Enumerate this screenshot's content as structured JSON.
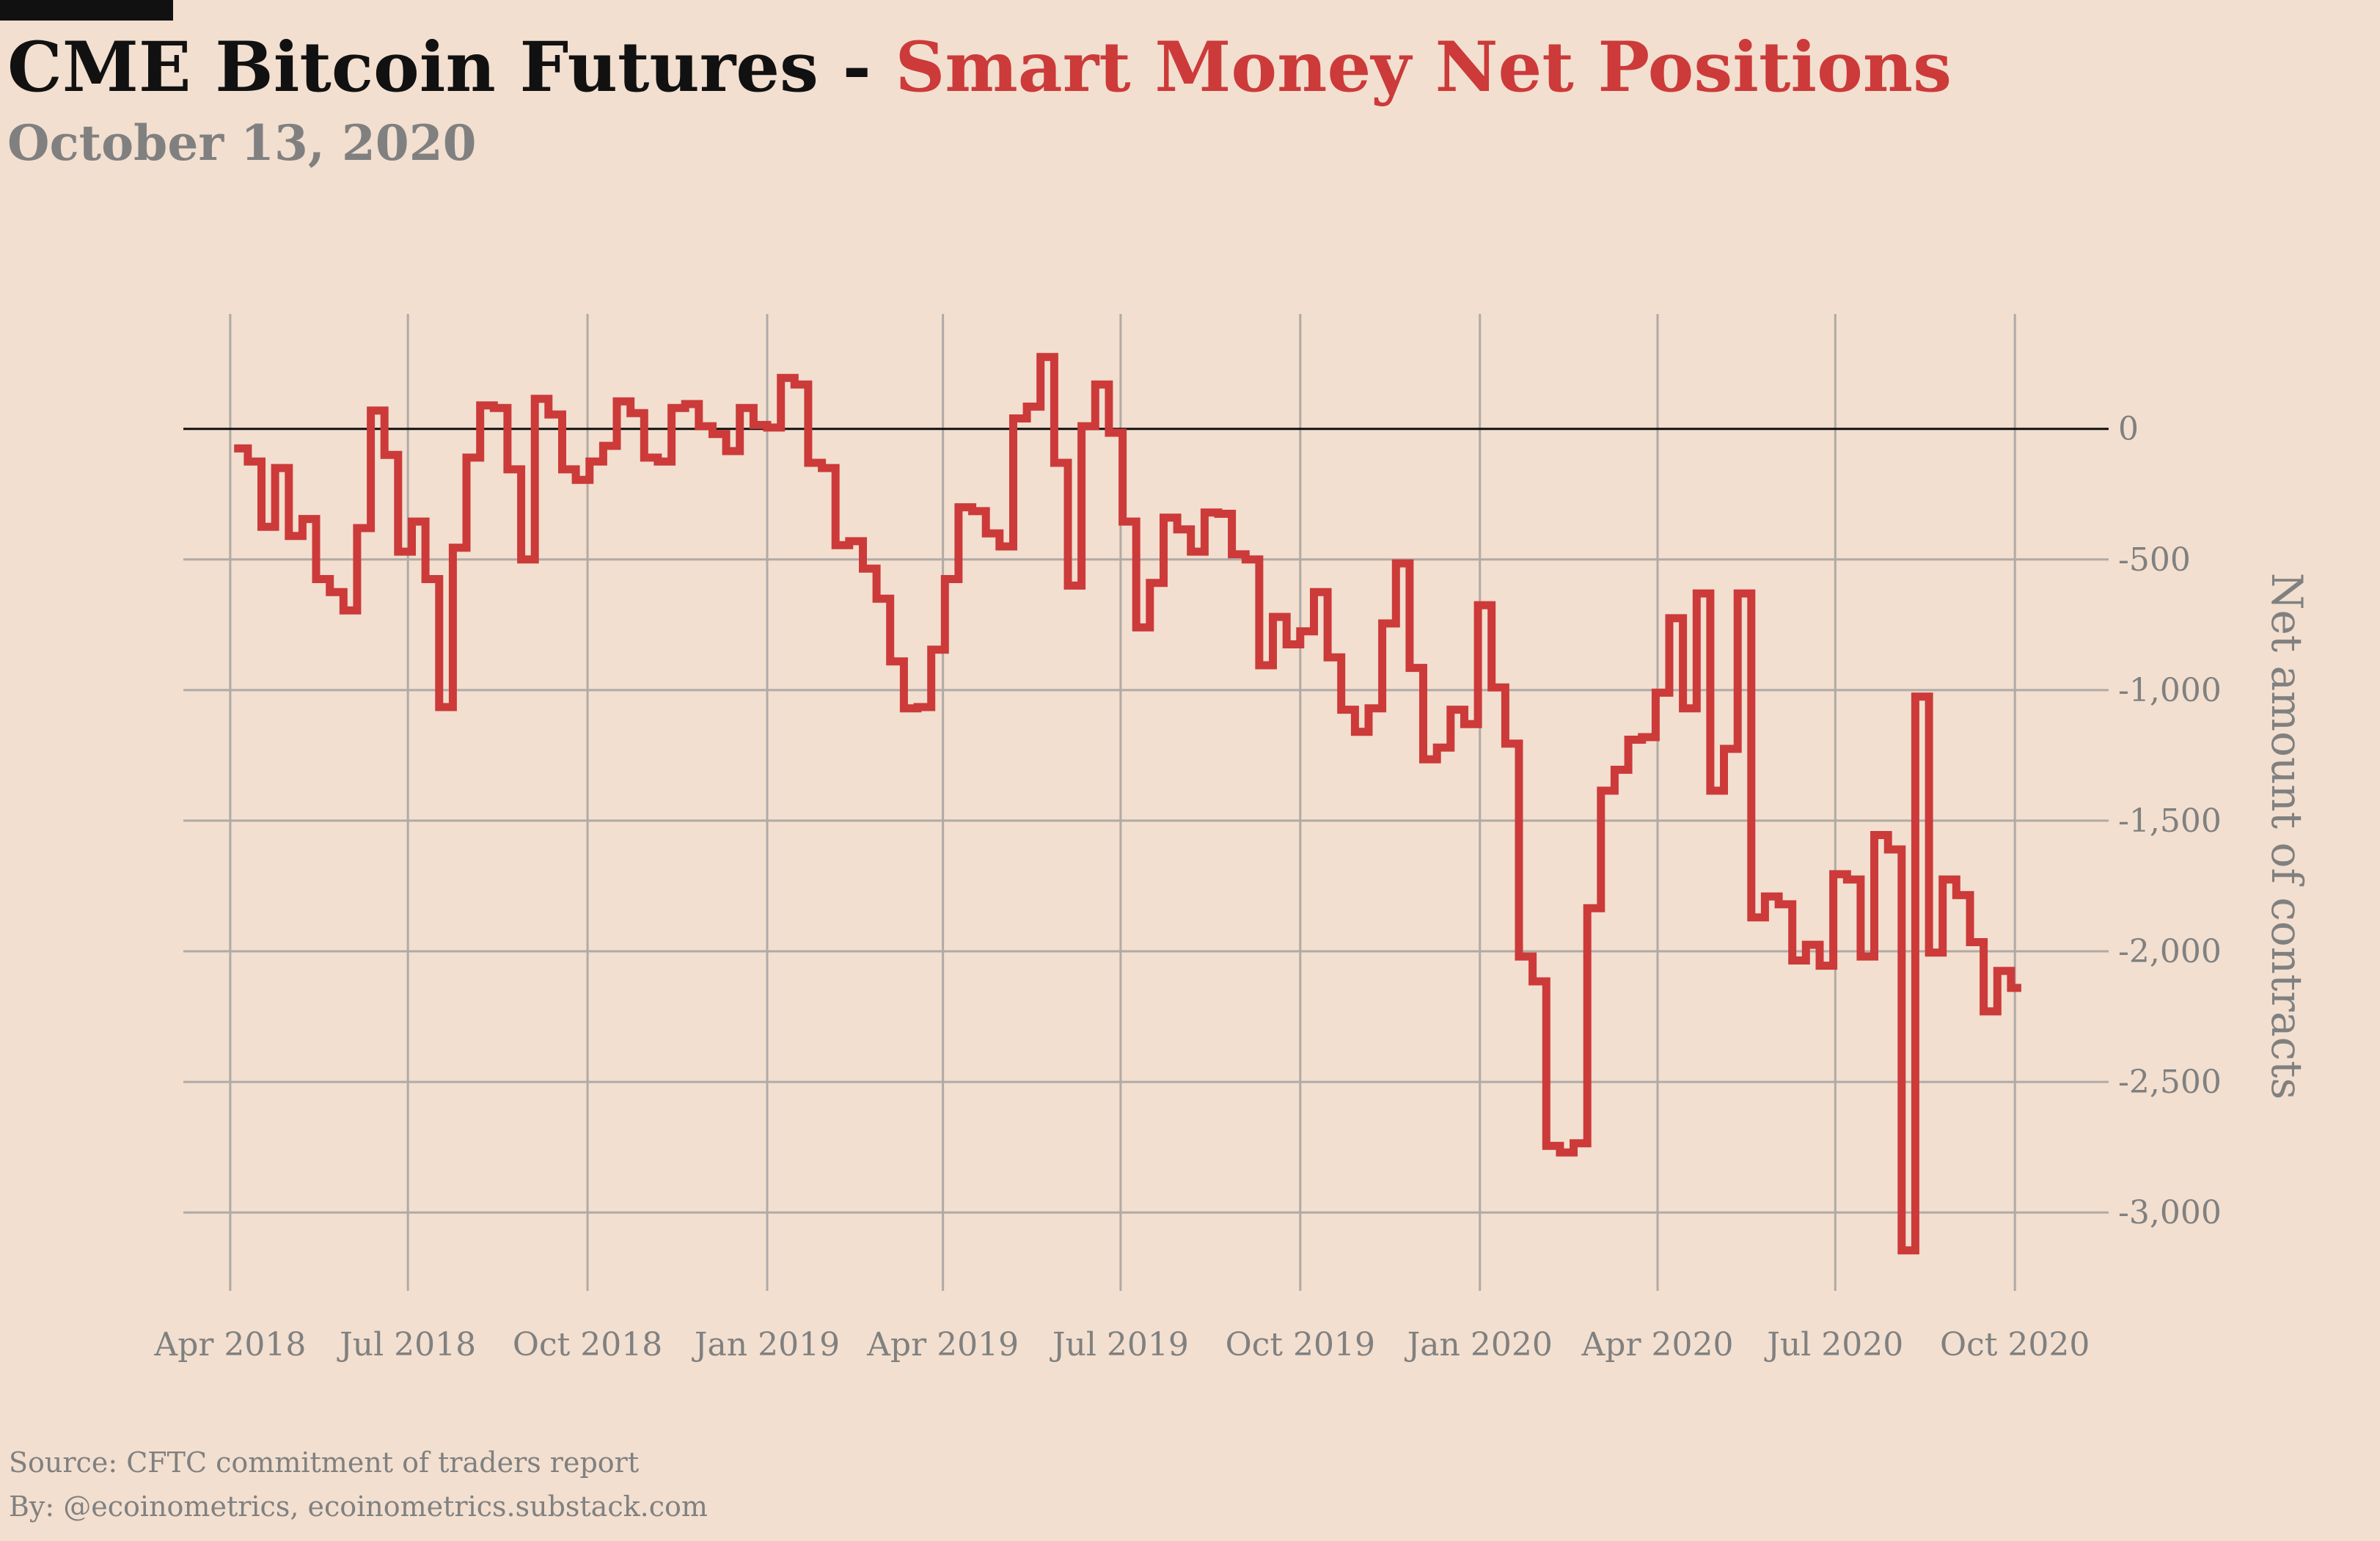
{
  "header": {
    "title_prefix": "CME Bitcoin Futures - ",
    "title_accent": "Smart Money Net Positions",
    "date": "October 13, 2020"
  },
  "footer": {
    "source": "Source: CFTC commitment of traders report",
    "by": "By: @ecoinometrics, ecoinometrics.substack.com"
  },
  "colors": {
    "background": "#f2dfcf",
    "accent": "#cc3a3a",
    "grid": "#b0aaa6",
    "muted": "#808080",
    "zero_line": "#111111"
  },
  "chart_data": {
    "type": "line",
    "line_style": "step",
    "title": "CME Bitcoin Futures - Smart Money Net Positions",
    "subtitle": "October 13, 2020",
    "xlabel": "",
    "ylabel": "Net amount of contracts",
    "y_axis_side": "right",
    "grid": true,
    "xlim": [
      "2018-03-08",
      "2020-11-18"
    ],
    "ylim": [
      -3300,
      440
    ],
    "x_ticks": [
      {
        "date": "2018-04-01",
        "label": "Apr 2018"
      },
      {
        "date": "2018-07-01",
        "label": "Jul 2018"
      },
      {
        "date": "2018-10-01",
        "label": "Oct 2018"
      },
      {
        "date": "2019-01-01",
        "label": "Jan 2019"
      },
      {
        "date": "2019-04-01",
        "label": "Apr 2019"
      },
      {
        "date": "2019-07-01",
        "label": "Jul 2019"
      },
      {
        "date": "2019-10-01",
        "label": "Oct 2019"
      },
      {
        "date": "2020-01-01",
        "label": "Jan 2020"
      },
      {
        "date": "2020-04-01",
        "label": "Apr 2020"
      },
      {
        "date": "2020-07-01",
        "label": "Jul 2020"
      },
      {
        "date": "2020-10-01",
        "label": "Oct 2020"
      }
    ],
    "y_ticks": [
      {
        "value": 0,
        "label": "0"
      },
      {
        "value": -500,
        "label": "-500"
      },
      {
        "value": -1000,
        "label": "-1,000"
      },
      {
        "value": -1500,
        "label": "-1,500"
      },
      {
        "value": -2000,
        "label": "-2,000"
      },
      {
        "value": -2500,
        "label": "-2,500"
      },
      {
        "value": -3000,
        "label": "-3,000"
      }
    ],
    "series": [
      {
        "name": "",
        "color": "#cc3a3a",
        "points": [
          [
            "2018-04-03",
            -75
          ],
          [
            "2018-04-10",
            -125
          ],
          [
            "2018-04-17",
            -375
          ],
          [
            "2018-04-24",
            -150
          ],
          [
            "2018-05-01",
            -410
          ],
          [
            "2018-05-08",
            -345
          ],
          [
            "2018-05-15",
            -575
          ],
          [
            "2018-05-22",
            -625
          ],
          [
            "2018-05-29",
            -695
          ],
          [
            "2018-06-05",
            -380
          ],
          [
            "2018-06-12",
            70
          ],
          [
            "2018-06-19",
            -100
          ],
          [
            "2018-06-26",
            -470
          ],
          [
            "2018-07-03",
            -355
          ],
          [
            "2018-07-10",
            -575
          ],
          [
            "2018-07-17",
            -1065
          ],
          [
            "2018-07-24",
            -455
          ],
          [
            "2018-07-31",
            -110
          ],
          [
            "2018-08-07",
            90
          ],
          [
            "2018-08-14",
            80
          ],
          [
            "2018-08-21",
            -155
          ],
          [
            "2018-08-28",
            -500
          ],
          [
            "2018-09-04",
            115
          ],
          [
            "2018-09-11",
            55
          ],
          [
            "2018-09-18",
            -155
          ],
          [
            "2018-09-25",
            -195
          ],
          [
            "2018-10-02",
            -125
          ],
          [
            "2018-10-09",
            -65
          ],
          [
            "2018-10-16",
            105
          ],
          [
            "2018-10-23",
            60
          ],
          [
            "2018-10-30",
            -110
          ],
          [
            "2018-11-06",
            -125
          ],
          [
            "2018-11-13",
            80
          ],
          [
            "2018-11-20",
            95
          ],
          [
            "2018-11-27",
            10
          ],
          [
            "2018-12-04",
            -20
          ],
          [
            "2018-12-11",
            -85
          ],
          [
            "2018-12-18",
            80
          ],
          [
            "2018-12-25",
            15
          ],
          [
            "2019-01-01",
            5
          ],
          [
            "2019-01-08",
            195
          ],
          [
            "2019-01-15",
            170
          ],
          [
            "2019-01-22",
            -130
          ],
          [
            "2019-01-29",
            -150
          ],
          [
            "2019-02-05",
            -445
          ],
          [
            "2019-02-12",
            -430
          ],
          [
            "2019-02-19",
            -535
          ],
          [
            "2019-02-26",
            -650
          ],
          [
            "2019-03-05",
            -890
          ],
          [
            "2019-03-12",
            -1070
          ],
          [
            "2019-03-19",
            -1065
          ],
          [
            "2019-03-26",
            -845
          ],
          [
            "2019-04-02",
            -575
          ],
          [
            "2019-04-09",
            -300
          ],
          [
            "2019-04-16",
            -315
          ],
          [
            "2019-04-23",
            -400
          ],
          [
            "2019-04-30",
            -450
          ],
          [
            "2019-05-07",
            40
          ],
          [
            "2019-05-14",
            85
          ],
          [
            "2019-05-21",
            275
          ],
          [
            "2019-05-28",
            -130
          ],
          [
            "2019-06-04",
            -600
          ],
          [
            "2019-06-11",
            10
          ],
          [
            "2019-06-18",
            170
          ],
          [
            "2019-06-25",
            -15
          ],
          [
            "2019-07-02",
            -355
          ],
          [
            "2019-07-09",
            -760
          ],
          [
            "2019-07-16",
            -590
          ],
          [
            "2019-07-23",
            -340
          ],
          [
            "2019-07-30",
            -385
          ],
          [
            "2019-08-06",
            -470
          ],
          [
            "2019-08-13",
            -320
          ],
          [
            "2019-08-20",
            -325
          ],
          [
            "2019-08-27",
            -480
          ],
          [
            "2019-09-03",
            -500
          ],
          [
            "2019-09-10",
            -905
          ],
          [
            "2019-09-17",
            -720
          ],
          [
            "2019-09-24",
            -825
          ],
          [
            "2019-10-01",
            -775
          ],
          [
            "2019-10-08",
            -625
          ],
          [
            "2019-10-15",
            -875
          ],
          [
            "2019-10-22",
            -1075
          ],
          [
            "2019-10-29",
            -1160
          ],
          [
            "2019-11-05",
            -1070
          ],
          [
            "2019-11-12",
            -745
          ],
          [
            "2019-11-19",
            -515
          ],
          [
            "2019-11-26",
            -915
          ],
          [
            "2019-12-03",
            -1265
          ],
          [
            "2019-12-10",
            -1220
          ],
          [
            "2019-12-17",
            -1075
          ],
          [
            "2019-12-24",
            -1130
          ],
          [
            "2019-12-31",
            -675
          ],
          [
            "2020-01-07",
            -990
          ],
          [
            "2020-01-14",
            -1205
          ],
          [
            "2020-01-21",
            -2020
          ],
          [
            "2020-01-28",
            -2115
          ],
          [
            "2020-02-04",
            -2745
          ],
          [
            "2020-02-11",
            -2770
          ],
          [
            "2020-02-18",
            -2735
          ],
          [
            "2020-02-25",
            -1835
          ],
          [
            "2020-03-03",
            -1385
          ],
          [
            "2020-03-10",
            -1305
          ],
          [
            "2020-03-17",
            -1190
          ],
          [
            "2020-03-24",
            -1180
          ],
          [
            "2020-03-31",
            -1010
          ],
          [
            "2020-04-07",
            -725
          ],
          [
            "2020-04-14",
            -1070
          ],
          [
            "2020-04-21",
            -630
          ],
          [
            "2020-04-28",
            -1385
          ],
          [
            "2020-05-05",
            -1225
          ],
          [
            "2020-05-12",
            -630
          ],
          [
            "2020-05-19",
            -1870
          ],
          [
            "2020-05-26",
            -1790
          ],
          [
            "2020-06-02",
            -1820
          ],
          [
            "2020-06-09",
            -2035
          ],
          [
            "2020-06-16",
            -1975
          ],
          [
            "2020-06-23",
            -2055
          ],
          [
            "2020-06-30",
            -1705
          ],
          [
            "2020-07-07",
            -1725
          ],
          [
            "2020-07-14",
            -2020
          ],
          [
            "2020-07-21",
            -1555
          ],
          [
            "2020-07-28",
            -1610
          ],
          [
            "2020-08-04",
            -3145
          ],
          [
            "2020-08-11",
            -1025
          ],
          [
            "2020-08-18",
            -2005
          ],
          [
            "2020-08-25",
            -1725
          ],
          [
            "2020-09-01",
            -1785
          ],
          [
            "2020-09-08",
            -1965
          ],
          [
            "2020-09-15",
            -2230
          ],
          [
            "2020-09-22",
            -2075
          ],
          [
            "2020-09-29",
            -2140
          ]
        ]
      }
    ]
  }
}
